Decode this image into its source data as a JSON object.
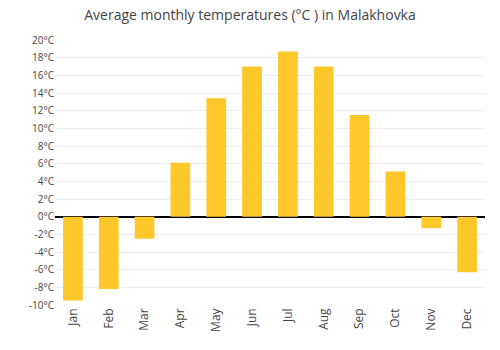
{
  "chart_data": {
    "type": "bar",
    "title": "Average monthly temperatures (°C ) in Malakhovka",
    "categories": [
      "Jan",
      "Feb",
      "Mar",
      "Apr",
      "May",
      "Jun",
      "Jul",
      "Aug",
      "Sep",
      "Oct",
      "Nov",
      "Dec"
    ],
    "values": [
      -9.5,
      -8.2,
      -2.5,
      6.1,
      13.4,
      17.0,
      18.7,
      17.0,
      11.5,
      5.1,
      -1.3,
      -6.3
    ],
    "color": "#FFC82A",
    "ylim": [
      -10,
      20
    ],
    "yticks": [
      {
        "value": -10,
        "label": "-10°C"
      },
      {
        "value": -8,
        "label": "-8°C"
      },
      {
        "value": -6,
        "label": "-6°C"
      },
      {
        "value": -4,
        "label": "-4°C"
      },
      {
        "value": -2,
        "label": "-2°C"
      },
      {
        "value": 0,
        "label": "0°C"
      },
      {
        "value": 2,
        "label": "2°C"
      },
      {
        "value": 4,
        "label": "4°C"
      },
      {
        "value": 6,
        "label": "6°C"
      },
      {
        "value": 8,
        "label": "8°C"
      },
      {
        "value": 10,
        "label": "10°C"
      },
      {
        "value": 12,
        "label": "12°C"
      },
      {
        "value": 14,
        "label": "14°C"
      },
      {
        "value": 16,
        "label": "16°C"
      },
      {
        "value": 18,
        "label": "18°C"
      },
      {
        "value": 20,
        "label": "20°C"
      }
    ],
    "grid": true
  }
}
